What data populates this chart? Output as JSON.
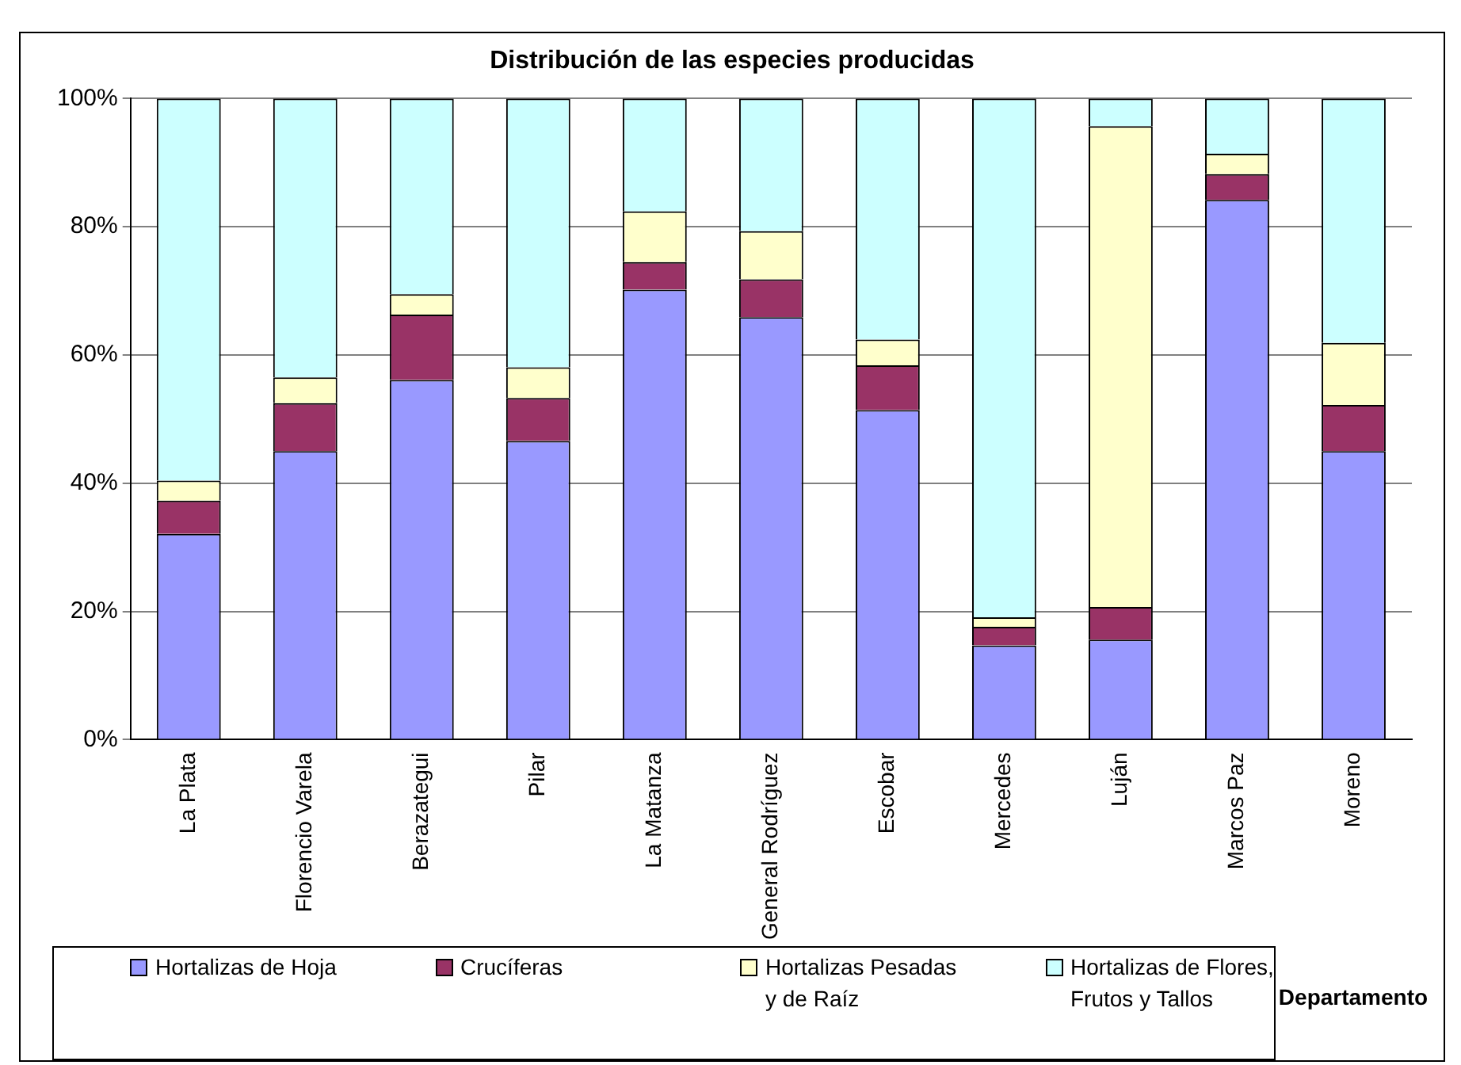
{
  "chart_data": {
    "type": "bar",
    "title": "Distribución de las especies producidas",
    "xlabel": "Departamento",
    "categories": [
      "La Plata",
      "Florencio Varela",
      "Berazategui",
      "Pilar",
      "La Matanza",
      "General Rodríguez",
      "Escobar",
      "Mercedes",
      "Luján",
      "Marcos Paz",
      "Moreno"
    ],
    "series": [
      {
        "name": "Hortalizas de Hoja",
        "color": "#9999ff",
        "values": [
          32.1,
          45.0,
          56.1,
          46.6,
          70.2,
          65.9,
          51.4,
          14.7,
          15.6,
          84.2,
          45.0
        ]
      },
      {
        "name": "Crucíferas",
        "color": "#993366",
        "values": [
          5.2,
          7.5,
          10.2,
          6.7,
          4.3,
          5.9,
          7.0,
          2.9,
          5.1,
          4.0,
          7.2
        ]
      },
      {
        "name": "Hortalizas Pesadas y de Raíz",
        "color": "#ffffcc",
        "values": [
          3.1,
          4.0,
          3.2,
          4.8,
          7.9,
          7.5,
          4.0,
          1.5,
          75.0,
          3.2,
          9.7
        ]
      },
      {
        "name": "Hortalizas de Flores, Frutos y Tallos",
        "color": "#ccffff",
        "values": [
          59.6,
          43.5,
          30.5,
          41.9,
          17.6,
          20.7,
          37.6,
          80.9,
          4.3,
          8.6,
          38.1
        ]
      }
    ],
    "stacked": true,
    "ylim": [
      0,
      100
    ],
    "yticks": [
      {
        "value": 0,
        "label": "0%"
      },
      {
        "value": 20,
        "label": "20%"
      },
      {
        "value": 40,
        "label": "40%"
      },
      {
        "value": 60,
        "label": "60%"
      },
      {
        "value": 80,
        "label": "80%"
      },
      {
        "value": 100,
        "label": "100%"
      }
    ],
    "grid": "y",
    "legend": "bottom"
  }
}
